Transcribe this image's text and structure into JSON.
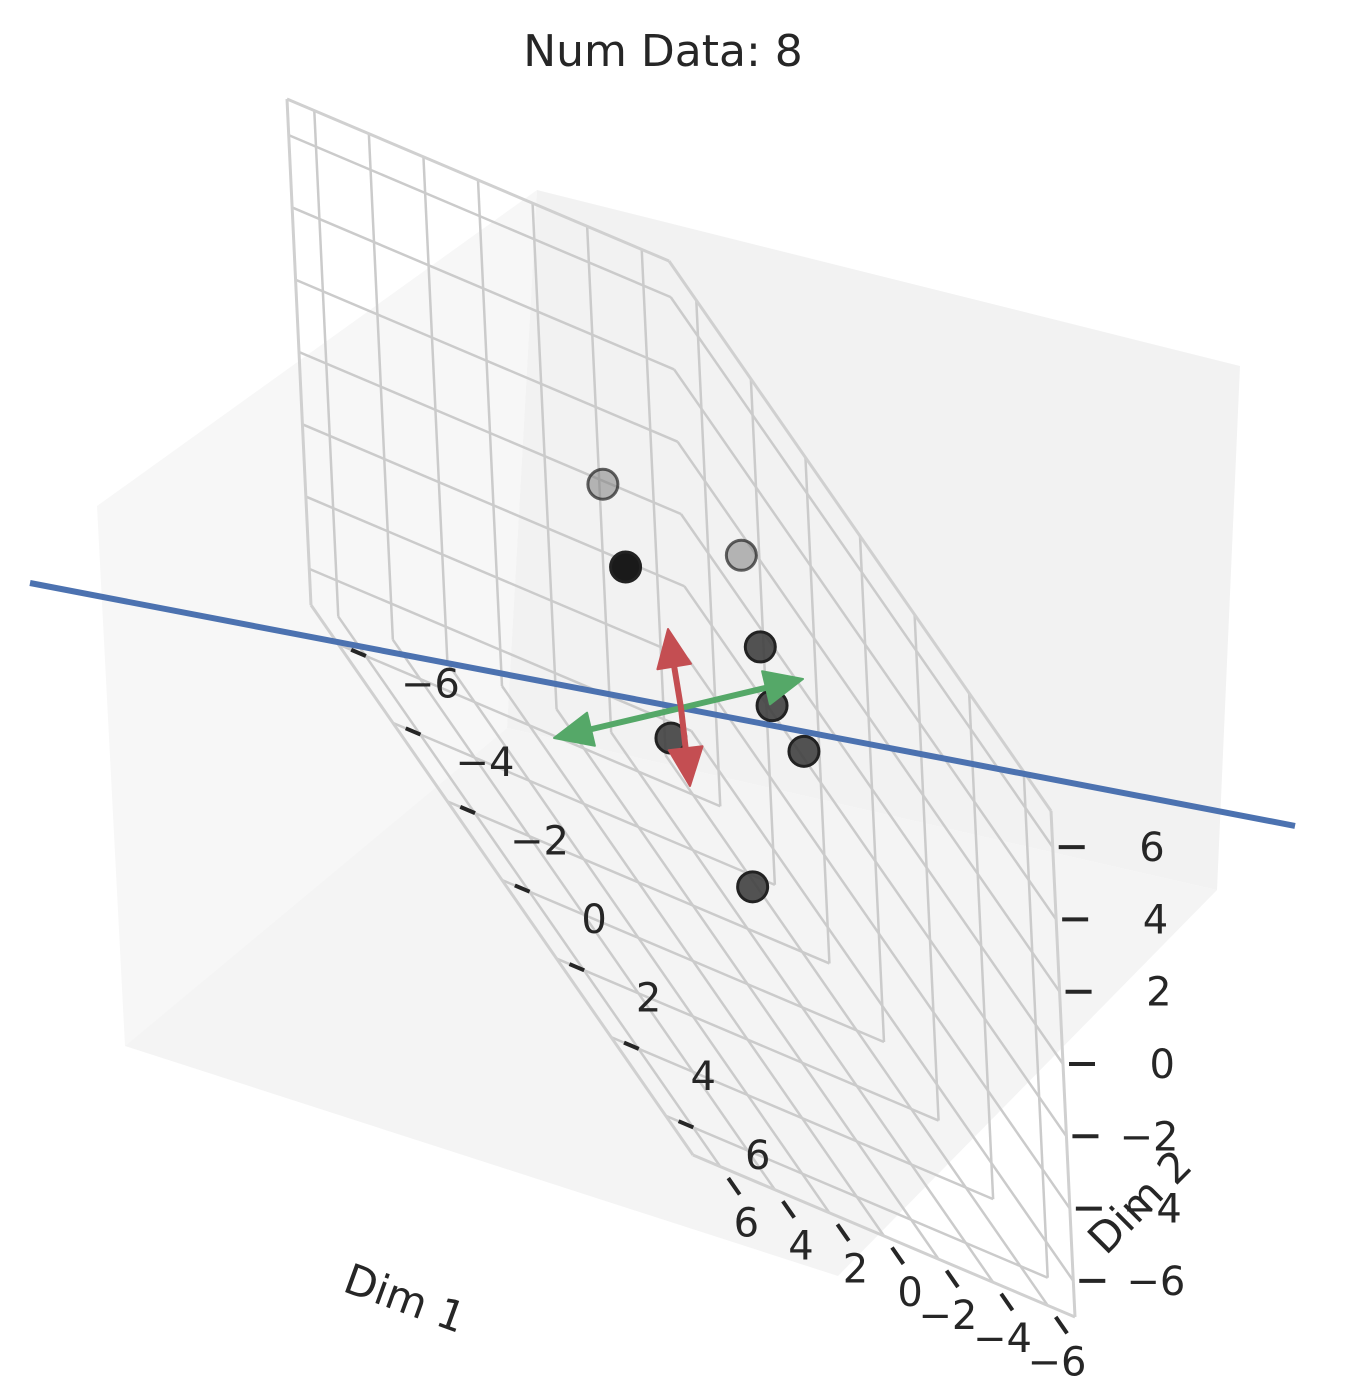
{
  "title": "Num Data: 8",
  "chart_data": {
    "type": "scatter",
    "projection": "3d",
    "title": "Num Data: 8",
    "xlabel": "Dim 1",
    "ylabel": "Dim 2",
    "zlabel": "",
    "xlim": [
      -7,
      7
    ],
    "ylim": [
      -7,
      7
    ],
    "zlim": [
      -7,
      7
    ],
    "xticks": [
      -6,
      -4,
      -2,
      0,
      2,
      4,
      6
    ],
    "yticks": [
      -6,
      -4,
      -2,
      0,
      2,
      4,
      6
    ],
    "zticks": [
      -6,
      -4,
      -2,
      0,
      2,
      4,
      6
    ],
    "x_tick_labels": [
      "−6",
      "−4",
      "−2",
      "0",
      "2",
      "4",
      "6"
    ],
    "y_tick_labels": [
      "−6",
      "−4",
      "−2",
      "0",
      "2",
      "4",
      "6"
    ],
    "z_tick_labels": [
      "−6",
      "−4",
      "−2",
      "0",
      "2",
      "4",
      "6"
    ],
    "grid": true,
    "points": [
      {
        "x": -3.6,
        "y": -1.6,
        "z": 0.5,
        "color": "#1a1a1a",
        "alpha": 1.0
      },
      {
        "x": -5.6,
        "y": -2.8,
        "z": 1.0,
        "color": "#808080",
        "alpha": 0.55
      },
      {
        "x": -2.6,
        "y": -5.0,
        "z": 3.0,
        "color": "#808080",
        "alpha": 0.55
      },
      {
        "x": -1.5,
        "y": -4.5,
        "z": 1.5,
        "color": "#404040",
        "alpha": 0.9
      },
      {
        "x": -0.2,
        "y": -3.6,
        "z": 1.0,
        "color": "#404040",
        "alpha": 0.9
      },
      {
        "x": 1.6,
        "y": -3.0,
        "z": 1.5,
        "color": "#404040",
        "alpha": 0.9
      },
      {
        "x": 0.6,
        "y": 1.0,
        "z": -0.5,
        "color": "#404040",
        "alpha": 0.9
      },
      {
        "x": 2.8,
        "y": 0.3,
        "z": -2.0,
        "color": "#404040",
        "alpha": 0.9
      }
    ],
    "line": {
      "color": "#4c72b0"
    },
    "arrows": [
      {
        "color": "#55a868",
        "direction": "both"
      },
      {
        "color": "#c44e52",
        "direction": "both"
      }
    ]
  }
}
